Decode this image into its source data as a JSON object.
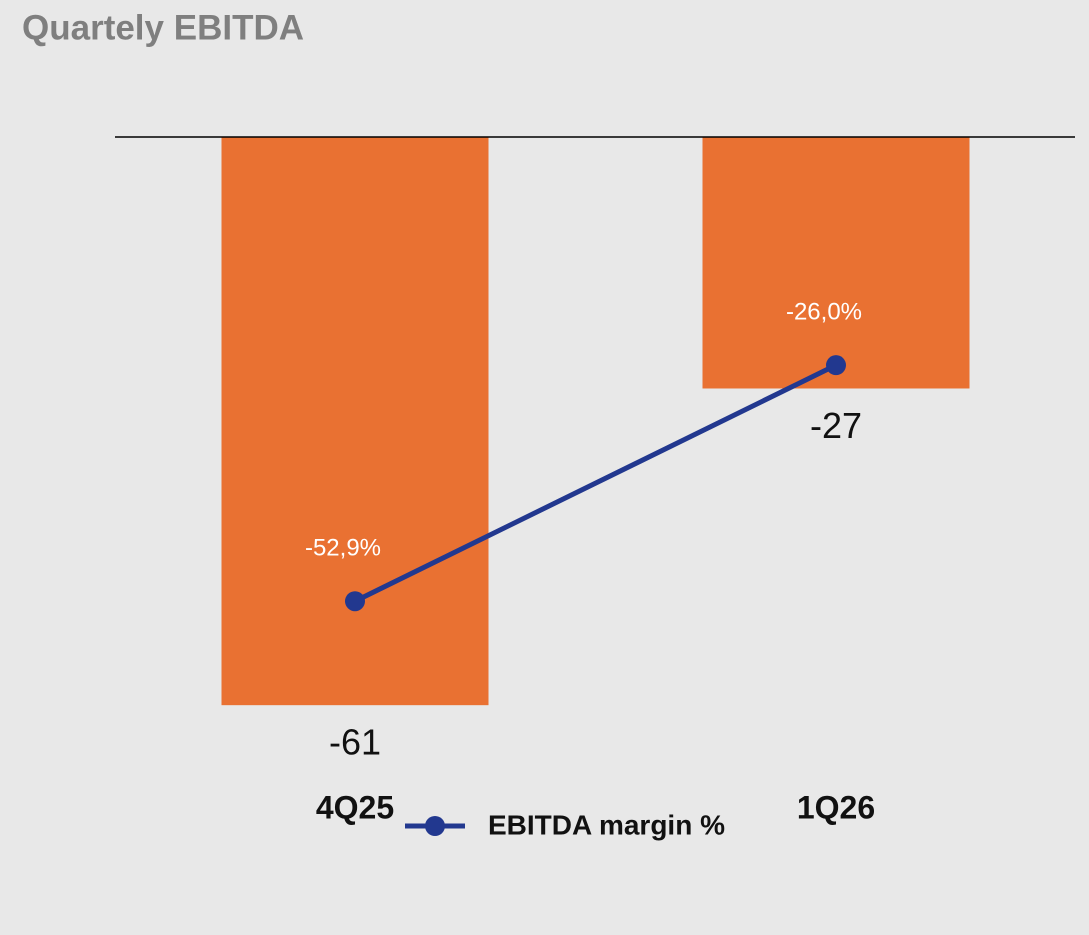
{
  "chart_data": {
    "type": "combo",
    "title": "Quartely EBITDA",
    "categories": [
      "4Q25",
      "1Q26"
    ],
    "series": [
      {
        "type": "bar",
        "color": "#e97132",
        "values": [
          -61,
          -27
        ]
      },
      {
        "type": "line",
        "name": "EBITDA margin %",
        "color": "#22388f",
        "axis": "y2",
        "values": [
          -52.9,
          -26.0
        ],
        "value_labels": [
          "-52,9%",
          "-26,0%"
        ]
      }
    ],
    "ylim": [
      -70,
      0
    ],
    "y2lim": [
      -74.3,
      0
    ],
    "legend": "bottom"
  }
}
